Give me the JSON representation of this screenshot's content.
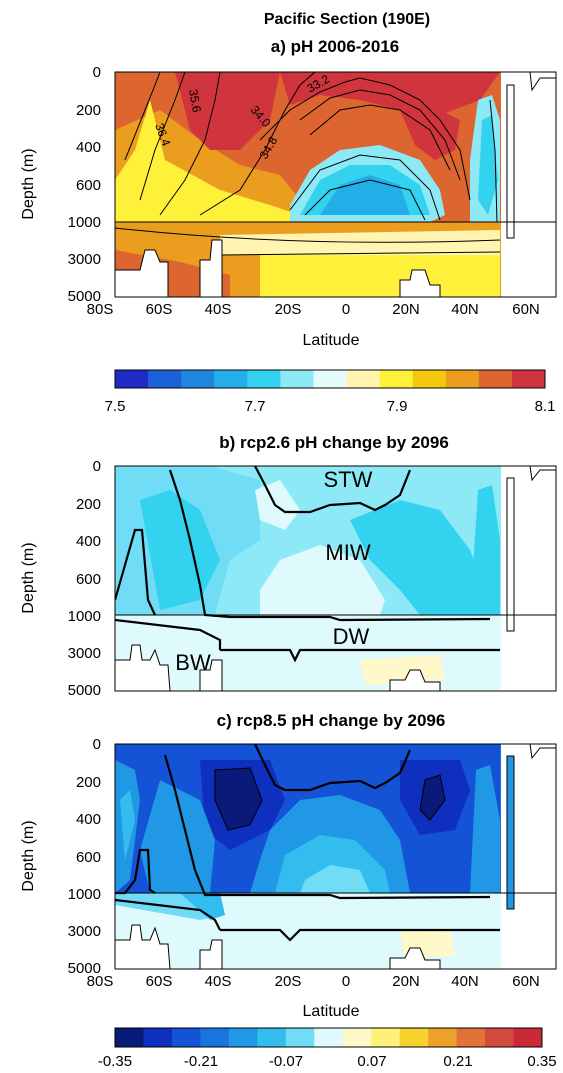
{
  "figure": {
    "title": "Pacific Section (190E)"
  },
  "chart_data": [
    {
      "type": "heatmap",
      "panel": "a",
      "title": "a) pH 2006-2016",
      "xlabel": "Latitude",
      "ylabel": "Depth (m)",
      "x_ticks": [
        "80S",
        "60S",
        "40S",
        "20S",
        "0",
        "20N",
        "40N",
        "60N"
      ],
      "x_values": [
        -80,
        -60,
        -40,
        -20,
        0,
        20,
        40,
        60
      ],
      "xlim": [
        -80,
        70
      ],
      "y_ticks": [
        "0",
        "200",
        "400",
        "600",
        "1000",
        "3000",
        "5000"
      ],
      "y_values": [
        0,
        200,
        400,
        600,
        1000,
        3000,
        5000
      ],
      "ylim": [
        0,
        5000
      ],
      "y_scale": "piecewise: linear 0-1000 upper, linear 1000-5000 lower",
      "contour_labels": [
        "36.4",
        "35.6",
        "34.8",
        "34.0",
        "33.2"
      ],
      "colorbar": {
        "min": 7.5,
        "max": 8.1,
        "levels": 13,
        "tick_labels": [
          "7.5",
          "7.7",
          "7.9",
          "8.1"
        ],
        "colors": [
          "#1f2bc4",
          "#1b62d8",
          "#1f86e0",
          "#23aee8",
          "#33d3ef",
          "#8ee9f6",
          "#e6fbfb",
          "#fff5b0",
          "#fff13a",
          "#f4c90d",
          "#ea9d1f",
          "#dc6530",
          "#d0353d"
        ]
      }
    },
    {
      "type": "heatmap",
      "panel": "b",
      "title": "b) rcp2.6 pH change by 2096",
      "xlabel": "",
      "ylabel": "Depth (m)",
      "x_values": [
        -80,
        -60,
        -40,
        -20,
        0,
        20,
        40,
        60
      ],
      "xlim": [
        -80,
        70
      ],
      "y_ticks": [
        "0",
        "200",
        "400",
        "600",
        "1000",
        "3000",
        "5000"
      ],
      "y_values": [
        0,
        200,
        400,
        600,
        1000,
        3000,
        5000
      ],
      "ylim": [
        0,
        5000
      ],
      "water_mass_labels": [
        "STW",
        "MIW",
        "DW",
        "BW"
      ]
    },
    {
      "type": "heatmap",
      "panel": "c",
      "title": "c) rcp8.5 pH change by 2096",
      "xlabel": "Latitude",
      "ylabel": "Depth (m)",
      "x_ticks": [
        "80S",
        "60S",
        "40S",
        "20S",
        "0",
        "20N",
        "40N",
        "60N"
      ],
      "x_values": [
        -80,
        -60,
        -40,
        -20,
        0,
        20,
        40,
        60
      ],
      "xlim": [
        -80,
        70
      ],
      "y_ticks": [
        "0",
        "200",
        "400",
        "600",
        "1000",
        "3000",
        "5000"
      ],
      "y_values": [
        0,
        200,
        400,
        600,
        1000,
        3000,
        5000
      ],
      "ylim": [
        0,
        5000
      ],
      "colorbar": {
        "min": -0.35,
        "max": 0.35,
        "levels": 15,
        "tick_labels": [
          "-0.35",
          "-0.21",
          "-0.07",
          "0.07",
          "0.21",
          "0.35"
        ],
        "colors": [
          "#0a1a7a",
          "#0f2fbf",
          "#1452d6",
          "#1a74de",
          "#2098e6",
          "#33bdef",
          "#70dcf6",
          "#dffafc",
          "#fff8c8",
          "#fff07a",
          "#f6d22c",
          "#eca22a",
          "#e0723a",
          "#d34a3e",
          "#c92a3a"
        ]
      }
    }
  ]
}
